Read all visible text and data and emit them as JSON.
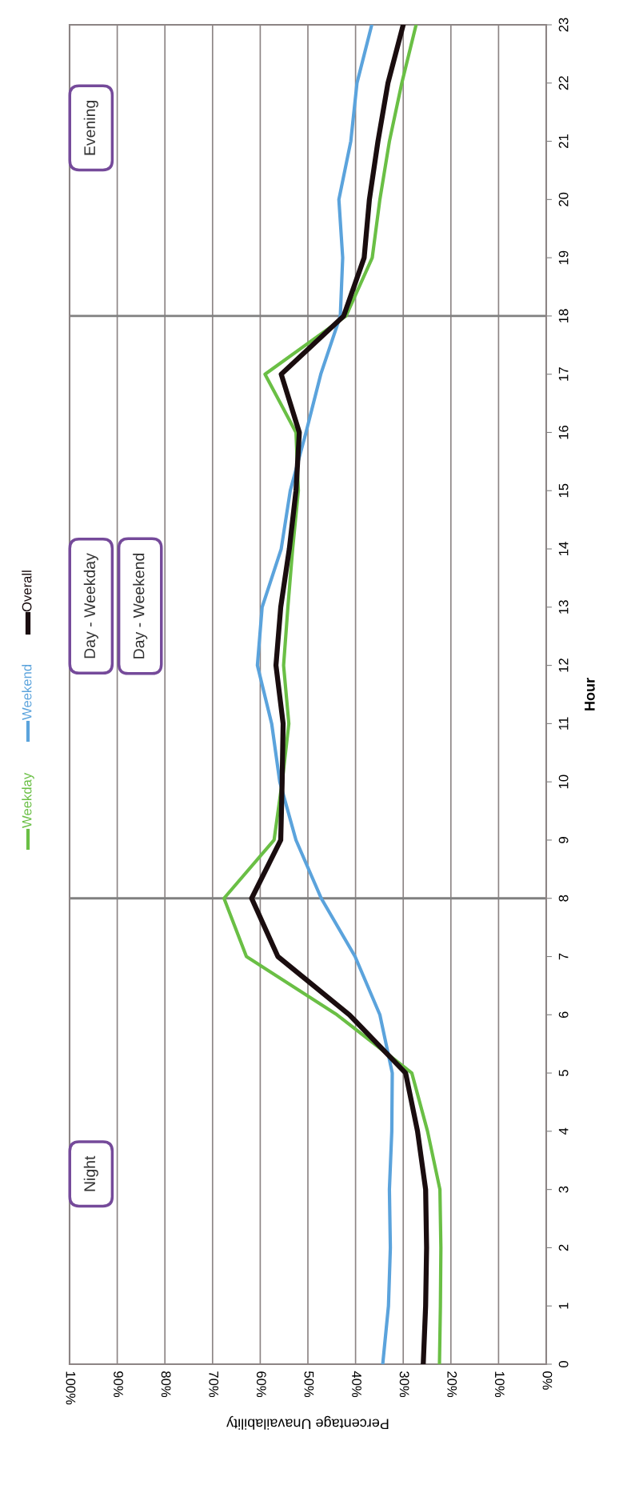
{
  "chart_data": {
    "type": "line",
    "orientation": "horizontal",
    "xlabel": "Percentage Unavailability",
    "ylabel": "Hour",
    "x": [
      0,
      1,
      2,
      3,
      4,
      5,
      6,
      7,
      8,
      9,
      10,
      11,
      12,
      13,
      14,
      15,
      16,
      17,
      18,
      19,
      20,
      21,
      22,
      23
    ],
    "ylim": [
      0,
      23
    ],
    "yticks": [
      0,
      1,
      2,
      3,
      4,
      5,
      6,
      7,
      8,
      9,
      10,
      11,
      12,
      13,
      14,
      15,
      16,
      17,
      18,
      19,
      20,
      21,
      22,
      23
    ],
    "xlim": [
      100,
      0
    ],
    "xticks": [
      {
        "value": 0,
        "label": "0%"
      },
      {
        "value": 10,
        "label": "10%"
      },
      {
        "value": 20,
        "label": "20%"
      },
      {
        "value": 30,
        "label": "30%"
      },
      {
        "value": 40,
        "label": "40%"
      },
      {
        "value": 50,
        "label": "50%"
      },
      {
        "value": 60,
        "label": "60%"
      },
      {
        "value": 70,
        "label": "70%"
      },
      {
        "value": 80,
        "label": "80%"
      },
      {
        "value": 90,
        "label": "90%"
      },
      {
        "value": 100,
        "label": "100%"
      }
    ],
    "grid": "x",
    "legend": "left",
    "marker": "none",
    "line_style": "solid",
    "series": [
      {
        "name": "Weekday",
        "color": "#6abf45",
        "values": [
          22.4,
          22.2,
          22.1,
          22.3,
          24.9,
          28.2,
          43.9,
          62.9,
          67.6,
          57.1,
          55.4,
          54.0,
          55.1,
          54.2,
          53.2,
          52.0,
          52.5,
          59.0,
          42.0,
          36.5,
          34.9,
          32.9,
          30.3,
          27.3
        ]
      },
      {
        "name": "Weekend",
        "color": "#5ba3dc",
        "values": [
          34.3,
          33.1,
          32.7,
          32.9,
          32.4,
          32.3,
          34.9,
          40.1,
          47.2,
          52.5,
          55.9,
          57.6,
          60.6,
          59.6,
          55.6,
          53.7,
          50.4,
          47.3,
          43.2,
          42.7,
          43.5,
          41.0,
          39.7,
          36.6
        ]
      },
      {
        "name": "Overall",
        "color": "#1a0d0f",
        "values": [
          25.8,
          25.3,
          25.1,
          25.3,
          27.0,
          29.5,
          41.3,
          56.3,
          61.8,
          55.7,
          55.4,
          55.2,
          56.7,
          55.7,
          53.9,
          52.5,
          51.8,
          55.6,
          42.5,
          38.2,
          37.1,
          35.3,
          33.2,
          30.0
        ]
      }
    ],
    "ref_lines": [
      {
        "axis": "y",
        "value": 8,
        "color": "#808080"
      },
      {
        "axis": "y",
        "value": 18,
        "color": "#808080"
      }
    ],
    "annotations": [
      "Night",
      "Day - Weekday",
      "Day - Weekend",
      "Evening"
    ]
  }
}
